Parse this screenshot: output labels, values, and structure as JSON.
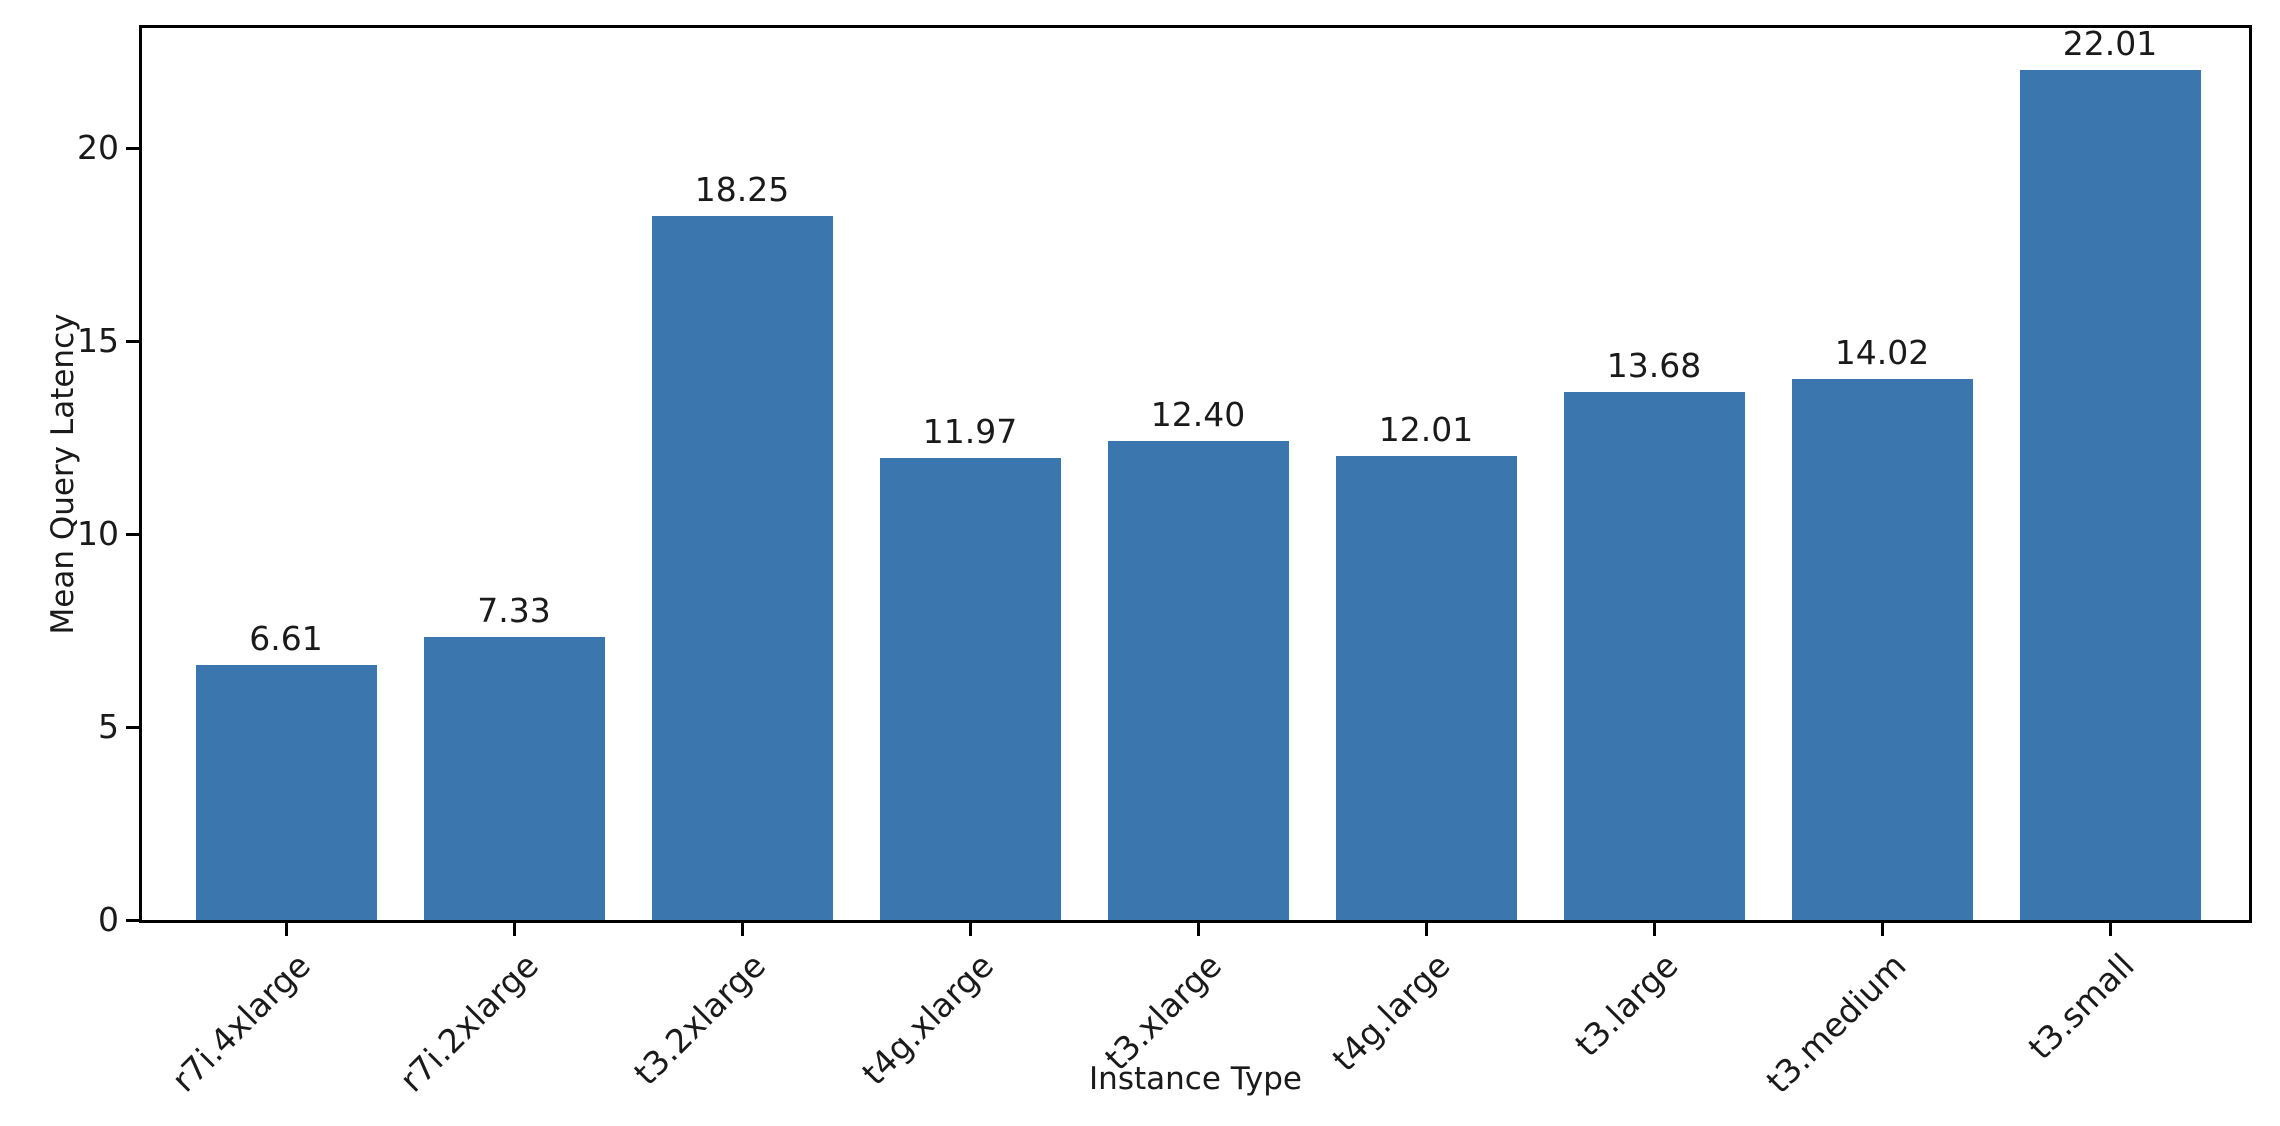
{
  "chart_data": {
    "type": "bar",
    "title": "",
    "xlabel": "Instance Type",
    "ylabel": "Mean Query Latency",
    "categories": [
      "r7i.4xlarge",
      "r7i.2xlarge",
      "t3.2xlarge",
      "t4g.xlarge",
      "t3.xlarge",
      "t4g.large",
      "t3.large",
      "t3.medium",
      "t3.small"
    ],
    "values": [
      6.61,
      7.33,
      18.25,
      11.97,
      12.4,
      12.01,
      13.68,
      14.02,
      22.01
    ],
    "value_labels": [
      "6.61",
      "7.33",
      "18.25",
      "11.97",
      "12.40",
      "12.01",
      "13.68",
      "14.02",
      "22.01"
    ],
    "yticks": [
      0,
      5,
      10,
      15,
      20
    ],
    "ytick_labels": [
      "0",
      "5",
      "10",
      "15",
      "20"
    ],
    "ylim": [
      0,
      23.11
    ],
    "grid": false,
    "legend": null,
    "xtick_rotation_deg": 45,
    "colors": {
      "bar": "#3b76af",
      "text": "#1a1a1a",
      "spine": "#000000",
      "background": "#ffffff"
    }
  }
}
